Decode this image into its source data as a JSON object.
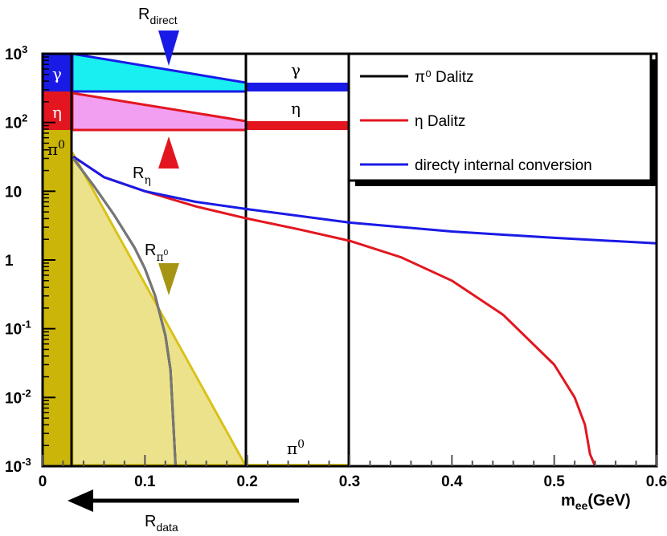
{
  "chart_data": {
    "type": "line",
    "xlabel": "m",
    "xlabel_sub": "ee",
    "xlabel_unit": "(GeV)",
    "xlim": [
      0,
      0.6
    ],
    "ylim": [
      0.001,
      1000
    ],
    "yscale": "log",
    "x_ticks": [
      "0",
      "0.1",
      "0.2",
      "0.3",
      "0.4",
      "0.5",
      "0.6"
    ],
    "y_ticks": [
      {
        "base": "10",
        "exp": "3"
      },
      {
        "base": "10",
        "exp": "2"
      },
      {
        "base": "10",
        "exp": ""
      },
      {
        "base": "1",
        "exp": ""
      },
      {
        "base": "10",
        "exp": "-1"
      },
      {
        "base": "10",
        "exp": "-2"
      },
      {
        "base": "10",
        "exp": "-3"
      }
    ],
    "legend": {
      "placement": "top-right",
      "entries": [
        {
          "name": "π⁰ Dalitz",
          "color": "#000000"
        },
        {
          "name": "η Dalitz",
          "color": "#e3161f"
        },
        {
          "name": "directγ internal conversion",
          "color": "#1a1ae6"
        }
      ]
    },
    "series": [
      {
        "name": "π⁰ Dalitz",
        "color": "#000000",
        "x": [
          0.03,
          0.05,
          0.07,
          0.09,
          0.1,
          0.11,
          0.12,
          0.125,
          0.13
        ],
        "y": [
          30,
          12,
          4.5,
          1.5,
          0.75,
          0.3,
          0.08,
          0.025,
          0.001
        ]
      },
      {
        "name": "η Dalitz",
        "color": "#e3161f",
        "x": [
          0.03,
          0.06,
          0.1,
          0.15,
          0.2,
          0.25,
          0.3,
          0.35,
          0.4,
          0.45,
          0.5,
          0.52,
          0.53,
          0.535,
          0.54,
          0.545
        ],
        "y": [
          32,
          16,
          10,
          6,
          4,
          2.8,
          1.9,
          1.1,
          0.5,
          0.16,
          0.03,
          0.01,
          0.004,
          0.0015,
          0.001,
          0.001
        ]
      },
      {
        "name": "directγ internal conversion",
        "color": "#1a1ae6",
        "x": [
          0.03,
          0.06,
          0.1,
          0.15,
          0.2,
          0.3,
          0.4,
          0.5,
          0.6
        ],
        "y": [
          32,
          16,
          10,
          7,
          5.5,
          3.5,
          2.6,
          2.1,
          1.75
        ]
      }
    ],
    "regions": {
      "gamma": {
        "label": "γ",
        "color": "#1a1ae6",
        "fill": "#19eef0"
      },
      "eta": {
        "label": "η",
        "color": "#e3161f",
        "fill": "#f29ff2"
      },
      "pi0": {
        "label": "π",
        "sup": "0",
        "color": "#cbb509",
        "fill": "#ede28c"
      }
    },
    "annotations": [
      {
        "id": "r-direct",
        "base": "R",
        "sub": "direct",
        "color": "#1a1ae6"
      },
      {
        "id": "r-eta",
        "base": "R",
        "sub": "η",
        "color": "#e3161f"
      },
      {
        "id": "r-pi0",
        "base": "R",
        "sub": "π",
        "subsup": "0",
        "color": "#a69514"
      },
      {
        "id": "r-data",
        "base": "R",
        "sub": "data"
      }
    ]
  }
}
